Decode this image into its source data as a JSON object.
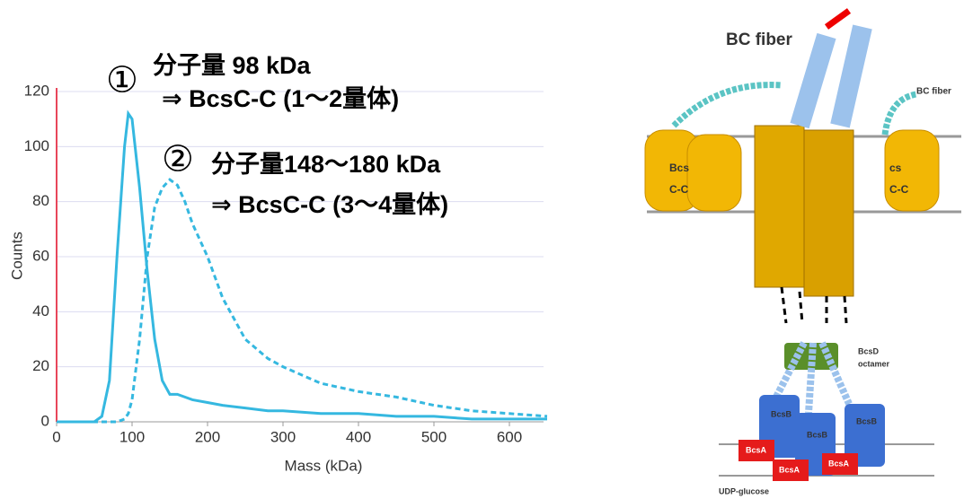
{
  "chart_data": {
    "type": "line",
    "x_label": "Mass (kDa)",
    "y_label": "Counts",
    "x": [
      0,
      50,
      60,
      70,
      80,
      90,
      95,
      100,
      110,
      120,
      130,
      140,
      150,
      160,
      170,
      180,
      200,
      220,
      250,
      280,
      300,
      350,
      400,
      450,
      500,
      550,
      600,
      650
    ],
    "series": [
      {
        "name": "①",
        "color": "#35b8e0",
        "dash": false,
        "values": [
          0,
          0,
          2,
          15,
          60,
          100,
          112,
          110,
          85,
          55,
          30,
          15,
          10,
          10,
          9,
          8,
          7,
          6,
          5,
          4,
          4,
          3,
          3,
          2,
          2,
          1,
          1,
          1
        ]
      },
      {
        "name": "②",
        "color": "#35b8e0",
        "dash": true,
        "values": [
          0,
          0,
          0,
          0,
          0,
          1,
          3,
          8,
          30,
          60,
          78,
          85,
          88,
          86,
          80,
          72,
          60,
          45,
          30,
          23,
          20,
          14,
          11,
          9,
          6,
          4,
          3,
          2
        ]
      }
    ],
    "xlim": [
      0,
      650
    ],
    "ylim": [
      0,
      120
    ],
    "xticks": [
      0,
      100,
      200,
      300,
      400,
      500,
      600
    ],
    "yticks": [
      0,
      20,
      40,
      60,
      80,
      100,
      120
    ],
    "grid": true,
    "annotations": [
      "分子量 98 kDa",
      "⇒ BcsC-C (1～2量体)",
      "分子量148～180 kDa",
      "⇒ BcsC-C (3～4量体)"
    ]
  },
  "diagram": {
    "labels": [
      "BC fiber",
      "BC fiber",
      "Bcs",
      "C-C",
      "cs",
      "C-C",
      "BcsD",
      "octamer",
      "BcsB",
      "BcsB",
      "BcsB",
      "BcsA",
      "BcsA",
      "BcsA",
      "UDP-glucose"
    ]
  }
}
